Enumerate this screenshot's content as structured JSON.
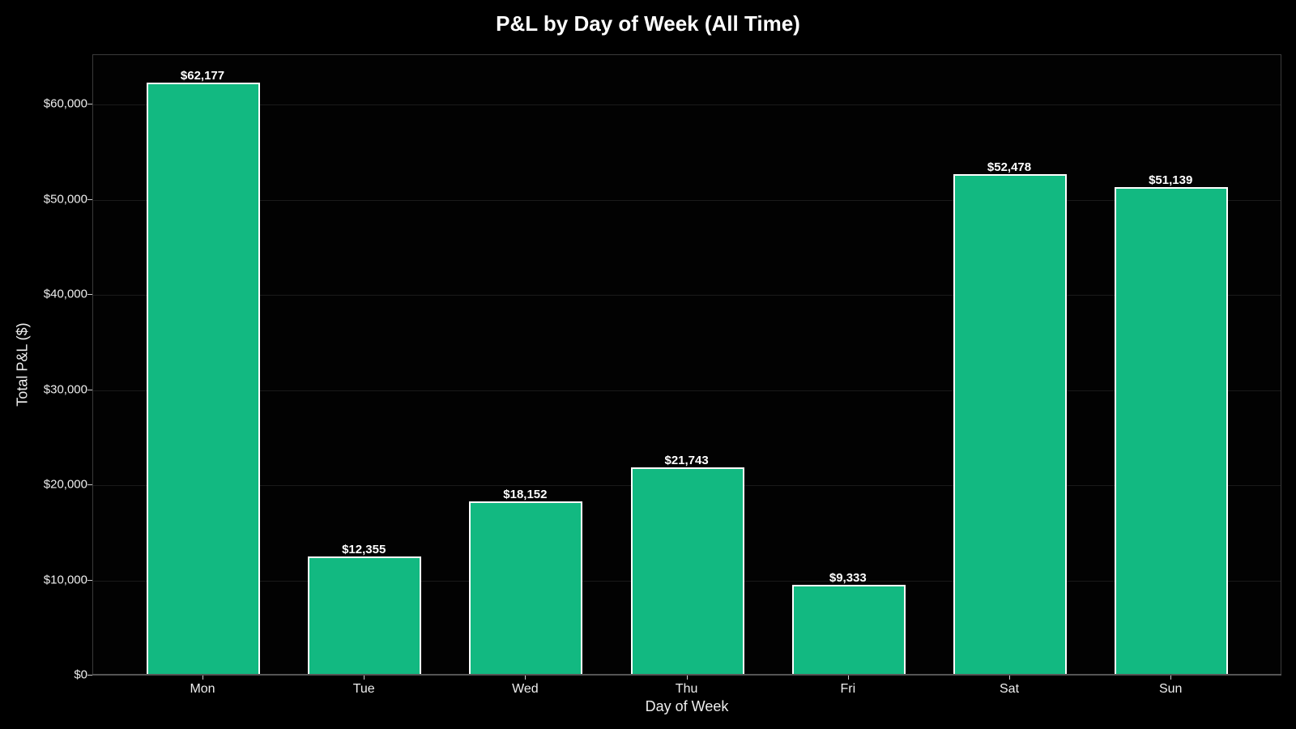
{
  "chart_data": {
    "type": "bar",
    "title": "P&L by Day of Week (All Time)",
    "xlabel": "Day of Week",
    "ylabel": "Total P&L ($)",
    "categories": [
      "Mon",
      "Tue",
      "Wed",
      "Thu",
      "Fri",
      "Sat",
      "Sun"
    ],
    "values": [
      62177,
      12355,
      18152,
      21743,
      9333,
      52478,
      51139
    ],
    "value_labels": [
      "$62,177",
      "$12,355",
      "$18,152",
      "$21,743",
      "$9,333",
      "$52,478",
      "$51,139"
    ],
    "ylim": [
      0,
      65200
    ],
    "yticks": [
      0,
      10000,
      20000,
      30000,
      40000,
      50000,
      60000
    ],
    "ytick_labels": [
      "$0",
      "$10,000",
      "$20,000",
      "$30,000",
      "$40,000",
      "$50,000",
      "$60,000"
    ],
    "grid": true,
    "legend": null,
    "colors": {
      "bar": "#12b981",
      "bar_edge": "#ffffff",
      "background": "#000000"
    }
  }
}
